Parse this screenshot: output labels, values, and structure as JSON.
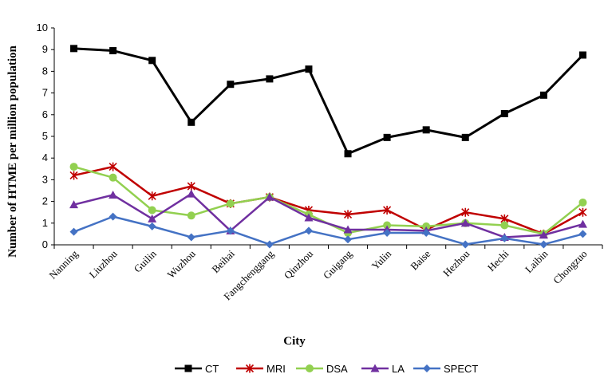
{
  "chart_data": {
    "type": "line",
    "xlabel": "City",
    "ylabel": "Number of HTME per million population",
    "ylim": [
      0,
      10
    ],
    "yticks": [
      "0",
      "1",
      "2",
      "3",
      "4",
      "5",
      "6",
      "7",
      "8",
      "9",
      "10"
    ],
    "grid": false,
    "legend_position": "bottom",
    "categories": [
      "Nanning",
      "Liuzhou",
      "Guilin",
      "Wuzhou",
      "Beihai",
      "Fangchenggang",
      "Qinzhou",
      "Guigang",
      "Yulin",
      "Baise",
      "Hezhou",
      "Hechi",
      "Laibin",
      "Chongzuo"
    ],
    "series": [
      {
        "name": "CT",
        "color": "#000000",
        "marker": "square",
        "values": [
          9.05,
          8.95,
          8.5,
          5.65,
          7.4,
          7.65,
          8.1,
          4.2,
          4.95,
          5.3,
          4.95,
          6.05,
          6.9,
          8.75
        ]
      },
      {
        "name": "MRI",
        "color": "#c00000",
        "marker": "star",
        "values": [
          3.2,
          3.6,
          2.25,
          2.7,
          1.9,
          2.2,
          1.6,
          1.4,
          1.6,
          0.7,
          1.5,
          1.2,
          0.5,
          1.5
        ]
      },
      {
        "name": "DSA",
        "color": "#92d050",
        "marker": "circle",
        "values": [
          3.6,
          3.1,
          1.6,
          1.35,
          1.9,
          2.2,
          1.4,
          0.55,
          0.9,
          0.85,
          1.0,
          0.9,
          0.5,
          1.95
        ]
      },
      {
        "name": "LA",
        "color": "#7030a0",
        "marker": "triangle",
        "values": [
          1.85,
          2.3,
          1.2,
          2.35,
          0.65,
          2.2,
          1.25,
          0.7,
          0.7,
          0.65,
          1.0,
          0.35,
          0.45,
          0.95
        ]
      },
      {
        "name": "SPECT",
        "color": "#4472c4",
        "marker": "diamond",
        "values": [
          0.6,
          1.3,
          0.85,
          0.35,
          0.65,
          0.02,
          0.65,
          0.25,
          0.55,
          0.55,
          0.02,
          0.3,
          0.02,
          0.5
        ]
      }
    ]
  }
}
